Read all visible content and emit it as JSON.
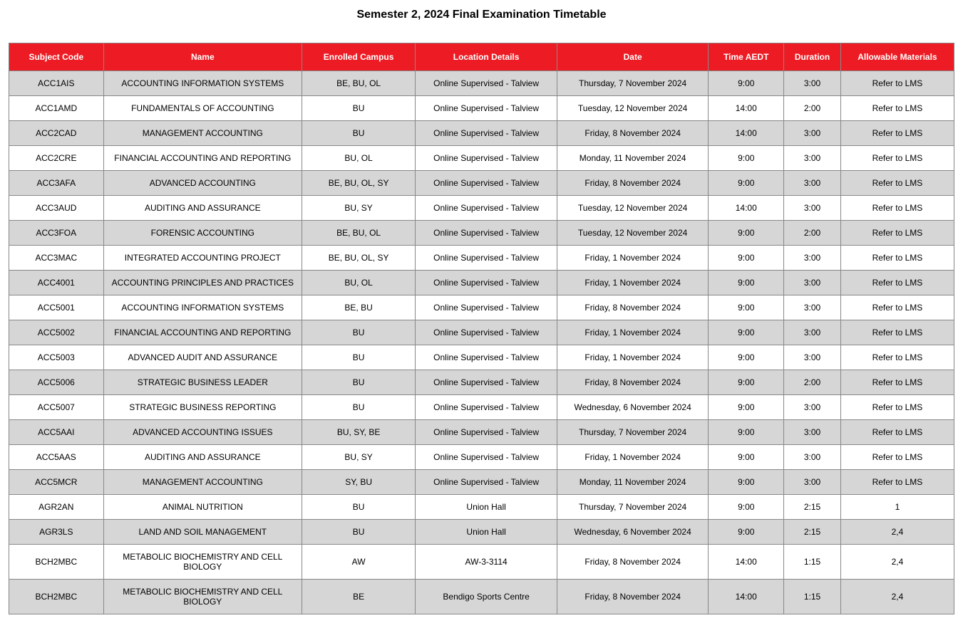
{
  "title": "Semester 2, 2024 Final Examination Timetable",
  "table": {
    "columns": [
      {
        "label": "Subject Code",
        "class": "col-subject-code"
      },
      {
        "label": "Name",
        "class": "col-name"
      },
      {
        "label": "Enrolled Campus",
        "class": "col-campus"
      },
      {
        "label": "Location Details",
        "class": "col-location"
      },
      {
        "label": "Date",
        "class": "col-date"
      },
      {
        "label": "Time AEDT",
        "class": "col-time"
      },
      {
        "label": "Duration",
        "class": "col-duration"
      },
      {
        "label": "Allowable Materials",
        "class": "col-materials"
      }
    ],
    "rows": [
      [
        "ACC1AIS",
        "ACCOUNTING INFORMATION SYSTEMS",
        "BE, BU, OL",
        "Online Supervised - Talview",
        "Thursday, 7 November 2024",
        "9:00",
        "3:00",
        "Refer to LMS"
      ],
      [
        "ACC1AMD",
        "FUNDAMENTALS OF ACCOUNTING",
        "BU",
        "Online Supervised - Talview",
        "Tuesday, 12 November 2024",
        "14:00",
        "2:00",
        "Refer to LMS"
      ],
      [
        "ACC2CAD",
        "MANAGEMENT ACCOUNTING",
        "BU",
        "Online Supervised - Talview",
        "Friday, 8 November 2024",
        "14:00",
        "3:00",
        "Refer to LMS"
      ],
      [
        "ACC2CRE",
        "FINANCIAL ACCOUNTING AND REPORTING",
        "BU, OL",
        "Online Supervised - Talview",
        "Monday, 11 November 2024",
        "9:00",
        "3:00",
        "Refer to LMS"
      ],
      [
        "ACC3AFA",
        "ADVANCED ACCOUNTING",
        "BE, BU, OL, SY",
        "Online Supervised - Talview",
        "Friday, 8 November 2024",
        "9:00",
        "3:00",
        "Refer to LMS"
      ],
      [
        "ACC3AUD",
        "AUDITING AND ASSURANCE",
        "BU, SY",
        "Online Supervised - Talview",
        "Tuesday, 12 November 2024",
        "14:00",
        "3:00",
        "Refer to LMS"
      ],
      [
        "ACC3FOA",
        "FORENSIC ACCOUNTING",
        "BE, BU, OL",
        "Online Supervised - Talview",
        "Tuesday, 12 November 2024",
        "9:00",
        "2:00",
        "Refer to LMS"
      ],
      [
        "ACC3MAC",
        "INTEGRATED ACCOUNTING PROJECT",
        "BE, BU, OL, SY",
        "Online Supervised - Talview",
        "Friday, 1 November 2024",
        "9:00",
        "3:00",
        "Refer to LMS"
      ],
      [
        "ACC4001",
        "ACCOUNTING PRINCIPLES AND PRACTICES",
        "BU, OL",
        "Online Supervised - Talview",
        "Friday, 1 November 2024",
        "9:00",
        "3:00",
        "Refer to LMS"
      ],
      [
        "ACC5001",
        "ACCOUNTING INFORMATION SYSTEMS",
        "BE, BU",
        "Online Supervised - Talview",
        "Friday, 8 November 2024",
        "9:00",
        "3:00",
        "Refer to LMS"
      ],
      [
        "ACC5002",
        "FINANCIAL ACCOUNTING AND REPORTING",
        "BU",
        "Online Supervised - Talview",
        "Friday, 1 November 2024",
        "9:00",
        "3:00",
        "Refer to LMS"
      ],
      [
        "ACC5003",
        "ADVANCED AUDIT AND ASSURANCE",
        "BU",
        "Online Supervised - Talview",
        "Friday, 1 November 2024",
        "9:00",
        "3:00",
        "Refer to LMS"
      ],
      [
        "ACC5006",
        "STRATEGIC BUSINESS LEADER",
        "BU",
        "Online Supervised - Talview",
        "Friday, 8 November 2024",
        "9:00",
        "2:00",
        "Refer to LMS"
      ],
      [
        "ACC5007",
        "STRATEGIC BUSINESS REPORTING",
        "BU",
        "Online Supervised - Talview",
        "Wednesday, 6 November 2024",
        "9:00",
        "3:00",
        "Refer to LMS"
      ],
      [
        "ACC5AAI",
        "ADVANCED ACCOUNTING ISSUES",
        "BU, SY, BE",
        "Online Supervised - Talview",
        "Thursday, 7 November 2024",
        "9:00",
        "3:00",
        "Refer to LMS"
      ],
      [
        "ACC5AAS",
        "AUDITING AND ASSURANCE",
        "BU, SY",
        "Online Supervised - Talview",
        "Friday, 1 November 2024",
        "9:00",
        "3:00",
        "Refer to LMS"
      ],
      [
        "ACC5MCR",
        "MANAGEMENT ACCOUNTING",
        "SY, BU",
        "Online Supervised - Talview",
        "Monday, 11 November 2024",
        "9:00",
        "3:00",
        "Refer to LMS"
      ],
      [
        "AGR2AN",
        "ANIMAL NUTRITION",
        "BU",
        "Union Hall",
        "Thursday, 7 November 2024",
        "9:00",
        "2:15",
        "1"
      ],
      [
        "AGR3LS",
        "LAND AND SOIL MANAGEMENT",
        "BU",
        "Union Hall",
        "Wednesday, 6 November 2024",
        "9:00",
        "2:15",
        "2,4"
      ],
      [
        "BCH2MBC",
        "METABOLIC BIOCHEMISTRY AND CELL BIOLOGY",
        "AW",
        "AW-3-3114",
        "Friday, 8 November 2024",
        "14:00",
        "1:15",
        "2,4"
      ],
      [
        "BCH2MBC",
        "METABOLIC BIOCHEMISTRY AND CELL BIOLOGY",
        "BE",
        "Bendigo Sports Centre",
        "Friday, 8 November 2024",
        "14:00",
        "1:15",
        "2,4"
      ]
    ],
    "header_bg": "#ed1c24",
    "header_fg": "#ffffff",
    "row_odd_bg": "#d6d6d6",
    "row_even_bg": "#ffffff",
    "border_color": "#888888",
    "font_size": 12
  }
}
